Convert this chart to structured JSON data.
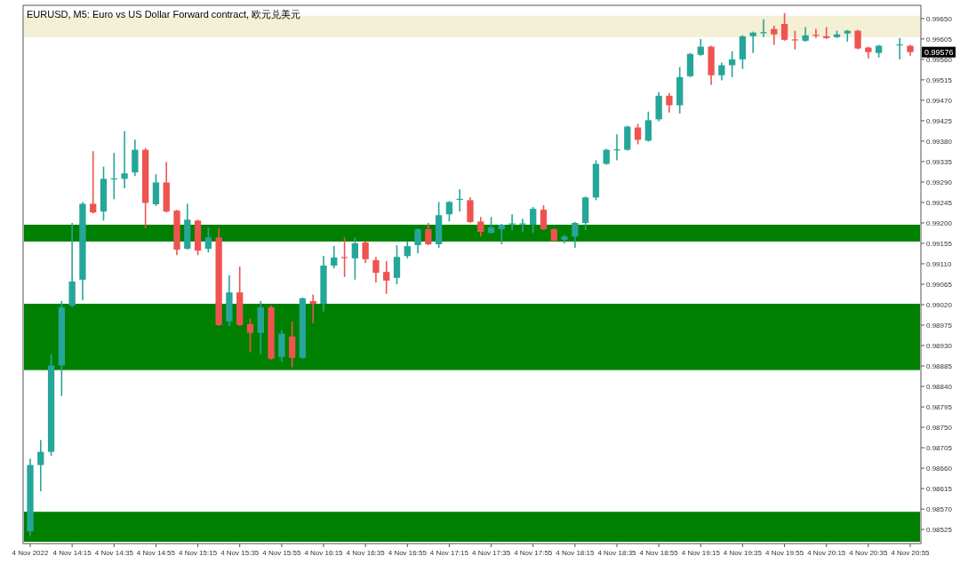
{
  "chart_data": {
    "type": "candlestick",
    "title": "EURUSD, M5:  Euro vs US Dollar Forward contract, 欧元兑美元",
    "categories": [
      "4 Nov 2022",
      null,
      null,
      null,
      "4 Nov 14:15",
      null,
      null,
      null,
      "4 Nov 14:35",
      null,
      null,
      null,
      "4 Nov 14:55",
      null,
      null,
      null,
      "4 Nov 15:15",
      null,
      null,
      null,
      "4 Nov 15:35",
      null,
      null,
      null,
      "4 Nov 15:55",
      null,
      null,
      null,
      "4 Nov 16:15",
      null,
      null,
      null,
      "4 Nov 16:35",
      null,
      null,
      null,
      "4 Nov 16:55",
      null,
      null,
      null,
      "4 Nov 17:15",
      null,
      null,
      null,
      "4 Nov 17:35",
      null,
      null,
      null,
      "4 Nov 17:55",
      null,
      null,
      null,
      "4 Nov 18:15",
      null,
      null,
      null,
      "4 Nov 18:35",
      null,
      null,
      null,
      "4 Nov 18:55",
      null,
      null,
      null,
      "4 Nov 19:15",
      null,
      null,
      null,
      "4 Nov 19:35",
      null,
      null,
      null,
      "4 Nov 19:55",
      null,
      null,
      null,
      "4 Nov 20:15",
      null,
      null,
      null,
      "4 Nov 20:35",
      null,
      null,
      null,
      "4 Nov 20:55"
    ],
    "ohlc": [
      [
        0.98521,
        0.98681,
        0.98511,
        0.98667
      ],
      [
        0.98667,
        0.98722,
        0.98609,
        0.98696
      ],
      [
        0.98696,
        0.98911,
        0.98687,
        0.98886
      ],
      [
        0.98886,
        0.99028,
        0.98819,
        0.99014
      ],
      [
        0.99018,
        0.992,
        0.99014,
        0.99071
      ],
      [
        0.99075,
        0.99246,
        0.9903,
        0.99242
      ],
      [
        0.99242,
        0.99358,
        0.99221,
        0.99223
      ],
      [
        0.99225,
        0.99324,
        0.99205,
        0.99297
      ],
      [
        0.99296,
        0.99354,
        0.99252,
        0.99298
      ],
      [
        0.99297,
        0.99402,
        0.99276,
        0.99309
      ],
      [
        0.99311,
        0.99383,
        0.99303,
        0.99361
      ],
      [
        0.99361,
        0.99365,
        0.99188,
        0.99244
      ],
      [
        0.99241,
        0.99307,
        0.99237,
        0.99289
      ],
      [
        0.99289,
        0.99334,
        0.99223,
        0.99225
      ],
      [
        0.99227,
        0.99229,
        0.99129,
        0.99141
      ],
      [
        0.99143,
        0.99242,
        0.99141,
        0.99207
      ],
      [
        0.99205,
        0.99207,
        0.99129,
        0.99139
      ],
      [
        0.99143,
        0.9919,
        0.99135,
        0.99168
      ],
      [
        0.99168,
        0.99188,
        0.98973,
        0.98975
      ],
      [
        0.98983,
        0.99085,
        0.98973,
        0.99047
      ],
      [
        0.99047,
        0.99104,
        0.98973,
        0.98975
      ],
      [
        0.98977,
        0.98989,
        0.98915,
        0.98958
      ],
      [
        0.98958,
        0.99028,
        0.98911,
        0.99014
      ],
      [
        0.99014,
        0.99018,
        0.98899,
        0.98901
      ],
      [
        0.98905,
        0.98964,
        0.98895,
        0.98956
      ],
      [
        0.9895,
        0.98983,
        0.98882,
        0.98903
      ],
      [
        0.98903,
        0.99036,
        0.98901,
        0.99034
      ],
      [
        0.99028,
        0.99042,
        0.98979,
        0.99022
      ],
      [
        0.99022,
        0.99127,
        0.99005,
        0.99106
      ],
      [
        0.99106,
        0.99149,
        0.991,
        0.99124
      ],
      [
        0.99125,
        0.99168,
        0.99081,
        0.99123
      ],
      [
        0.99122,
        0.99168,
        0.99075,
        0.99155
      ],
      [
        0.99157,
        0.99159,
        0.99112,
        0.9912
      ],
      [
        0.99118,
        0.99125,
        0.99069,
        0.9909
      ],
      [
        0.99092,
        0.99116,
        0.99044,
        0.99073
      ],
      [
        0.99079,
        0.99151,
        0.99065,
        0.99125
      ],
      [
        0.99127,
        0.99159,
        0.99122,
        0.99149
      ],
      [
        0.99151,
        0.99188,
        0.99133,
        0.99186
      ],
      [
        0.99186,
        0.992,
        0.99151,
        0.99153
      ],
      [
        0.99153,
        0.99246,
        0.99145,
        0.99217
      ],
      [
        0.99219,
        0.99248,
        0.99203,
        0.99246
      ],
      [
        0.99251,
        0.99274,
        0.99225,
        0.99253
      ],
      [
        0.9925,
        0.99256,
        0.992,
        0.99202
      ],
      [
        0.99203,
        0.99213,
        0.9917,
        0.9918
      ],
      [
        0.99178,
        0.99213,
        0.99176,
        0.9919
      ],
      [
        0.99186,
        0.99198,
        0.99153,
        0.99196
      ],
      [
        0.99197,
        0.99219,
        0.99184,
        0.99199
      ],
      [
        0.99197,
        0.99209,
        0.9918,
        0.99199
      ],
      [
        0.99196,
        0.99235,
        0.99178,
        0.99231
      ],
      [
        0.99229,
        0.99239,
        0.99184,
        0.99186
      ],
      [
        0.99186,
        0.99188,
        0.99159,
        0.99161
      ],
      [
        0.99163,
        0.99174,
        0.99155,
        0.9917
      ],
      [
        0.9917,
        0.99202,
        0.99145,
        0.992
      ],
      [
        0.992,
        0.99258,
        0.99184,
        0.99256
      ],
      [
        0.99256,
        0.99338,
        0.9925,
        0.9933
      ],
      [
        0.9933,
        0.99363,
        0.99328,
        0.99361
      ],
      [
        0.9936,
        0.99395,
        0.99338,
        0.99362
      ],
      [
        0.99361,
        0.99414,
        0.99359,
        0.99412
      ],
      [
        0.9941,
        0.99418,
        0.99373,
        0.99383
      ],
      [
        0.99381,
        0.99445,
        0.99379,
        0.99426
      ],
      [
        0.99428,
        0.99488,
        0.99424,
        0.9948
      ],
      [
        0.9948,
        0.99486,
        0.99443,
        0.99459
      ],
      [
        0.99459,
        0.99543,
        0.99441,
        0.99521
      ],
      [
        0.99523,
        0.99574,
        0.99521,
        0.99572
      ],
      [
        0.9957,
        0.99605,
        0.99568,
        0.99588
      ],
      [
        0.99588,
        0.9959,
        0.99504,
        0.99525
      ],
      [
        0.99525,
        0.99553,
        0.99514,
        0.99547
      ],
      [
        0.99547,
        0.99578,
        0.99521,
        0.9956
      ],
      [
        0.9956,
        0.99613,
        0.99539,
        0.99611
      ],
      [
        0.99611,
        0.99621,
        0.99574,
        0.99619
      ],
      [
        0.99618,
        0.99648,
        0.99609,
        0.9962
      ],
      [
        0.99627,
        0.99634,
        0.99592,
        0.99615
      ],
      [
        0.99638,
        0.99662,
        0.99601,
        0.99603
      ],
      [
        0.99604,
        0.99623,
        0.99582,
        0.99602
      ],
      [
        0.99601,
        0.99631,
        0.99599,
        0.99613
      ],
      [
        0.99614,
        0.99627,
        0.99607,
        0.99612
      ],
      [
        0.99611,
        0.99631,
        0.99605,
        0.99607
      ],
      [
        0.99609,
        0.99623,
        0.99607,
        0.99615
      ],
      [
        0.99617,
        0.99625,
        0.99599,
        0.99623
      ],
      [
        0.99623,
        0.99625,
        0.99582,
        0.99584
      ],
      [
        0.99586,
        0.99588,
        0.99562,
        0.99576
      ],
      [
        0.99574,
        0.99592,
        0.99564,
        0.9959
      ],
      null,
      [
        0.99591,
        0.99607,
        0.9956,
        0.99593
      ],
      [
        0.9959,
        0.99592,
        0.99568,
        0.99576
      ]
    ],
    "colors": [
      "#26a69a",
      "#26a69a",
      "#26a69a",
      "#26a69a",
      "#26a69a",
      "#26a69a",
      "#ef5350",
      "#26a69a",
      "#26a69a",
      "#26a69a",
      "#26a69a",
      "#ef5350",
      "#26a69a",
      "#ef5350",
      "#ef5350",
      "#26a69a",
      "#ef5350",
      "#26a69a",
      "#ef5350",
      "#26a69a",
      "#ef5350",
      "#ef5350",
      "#26a69a",
      "#ef5350",
      "#26a69a",
      "#ef5350",
      "#26a69a",
      "#ef5350",
      "#26a69a",
      "#26a69a",
      "#ef5350",
      "#26a69a",
      "#ef5350",
      "#ef5350",
      "#ef5350",
      "#26a69a",
      "#26a69a",
      "#26a69a",
      "#ef5350",
      "#26a69a",
      "#26a69a",
      "#26a69a",
      "#ef5350",
      "#ef5350",
      "#26a69a",
      "#26a69a",
      "#26a69a",
      "#26a69a",
      "#26a69a",
      "#ef5350",
      "#ef5350",
      "#26a69a",
      "#26a69a",
      "#26a69a",
      "#26a69a",
      "#26a69a",
      "#26a69a",
      "#26a69a",
      "#ef5350",
      "#26a69a",
      "#26a69a",
      "#ef5350",
      "#26a69a",
      "#26a69a",
      "#26a69a",
      "#ef5350",
      "#26a69a",
      "#26a69a",
      "#26a69a",
      "#26a69a",
      "#26a69a",
      "#ef5350",
      "#ef5350",
      "#ef5350",
      "#26a69a",
      "#ef5350",
      "#ef5350",
      "#26a69a",
      "#26a69a",
      "#ef5350",
      "#ef5350",
      "#26a69a",
      null,
      "#26a69a",
      "#ef5350"
    ],
    "ylim": [
      0.98494,
      0.99679
    ],
    "yticks": [
      {
        "value": 0.98525,
        "label": "0.98525"
      },
      {
        "value": 0.9857,
        "label": "0.98570"
      },
      {
        "value": 0.98615,
        "label": "0.98615"
      },
      {
        "value": 0.9866,
        "label": "0.98660"
      },
      {
        "value": 0.98705,
        "label": "0.98705"
      },
      {
        "value": 0.9875,
        "label": "0.98750"
      },
      {
        "value": 0.98795,
        "label": "0.98795"
      },
      {
        "value": 0.9884,
        "label": "0.98840"
      },
      {
        "value": 0.98885,
        "label": "0.98885"
      },
      {
        "value": 0.9893,
        "label": "0.98930"
      },
      {
        "value": 0.98975,
        "label": "0.98975"
      },
      {
        "value": 0.9902,
        "label": "0.99020"
      },
      {
        "value": 0.99065,
        "label": "0.99065"
      },
      {
        "value": 0.9911,
        "label": "0.99110"
      },
      {
        "value": 0.99155,
        "label": "0.99155"
      },
      {
        "value": 0.992,
        "label": "0.99200"
      },
      {
        "value": 0.99245,
        "label": "0.99245"
      },
      {
        "value": 0.9929,
        "label": "0.99290"
      },
      {
        "value": 0.99335,
        "label": "0.99335"
      },
      {
        "value": 0.9938,
        "label": "0.99380"
      },
      {
        "value": 0.99425,
        "label": "0.99425"
      },
      {
        "value": 0.9947,
        "label": "0.99470"
      },
      {
        "value": 0.99515,
        "label": "0.99515"
      },
      {
        "value": 0.9956,
        "label": "0.99560"
      },
      {
        "value": 0.99605,
        "label": "0.99605"
      },
      {
        "value": 0.9965,
        "label": "0.99650"
      }
    ],
    "bands": [
      {
        "axis": "y",
        "from": 0.98498,
        "to": 0.98564,
        "color": "#008000"
      },
      {
        "axis": "y",
        "from": 0.98876,
        "to": 0.99022,
        "color": "#008000"
      },
      {
        "axis": "y",
        "from": 0.99159,
        "to": 0.99196,
        "color": "#008000"
      },
      {
        "axis": "y",
        "from": 0.99609,
        "to": 0.99656,
        "color": "#f3f0d6"
      }
    ],
    "annotations": [
      "0.99576"
    ],
    "grid": false
  }
}
